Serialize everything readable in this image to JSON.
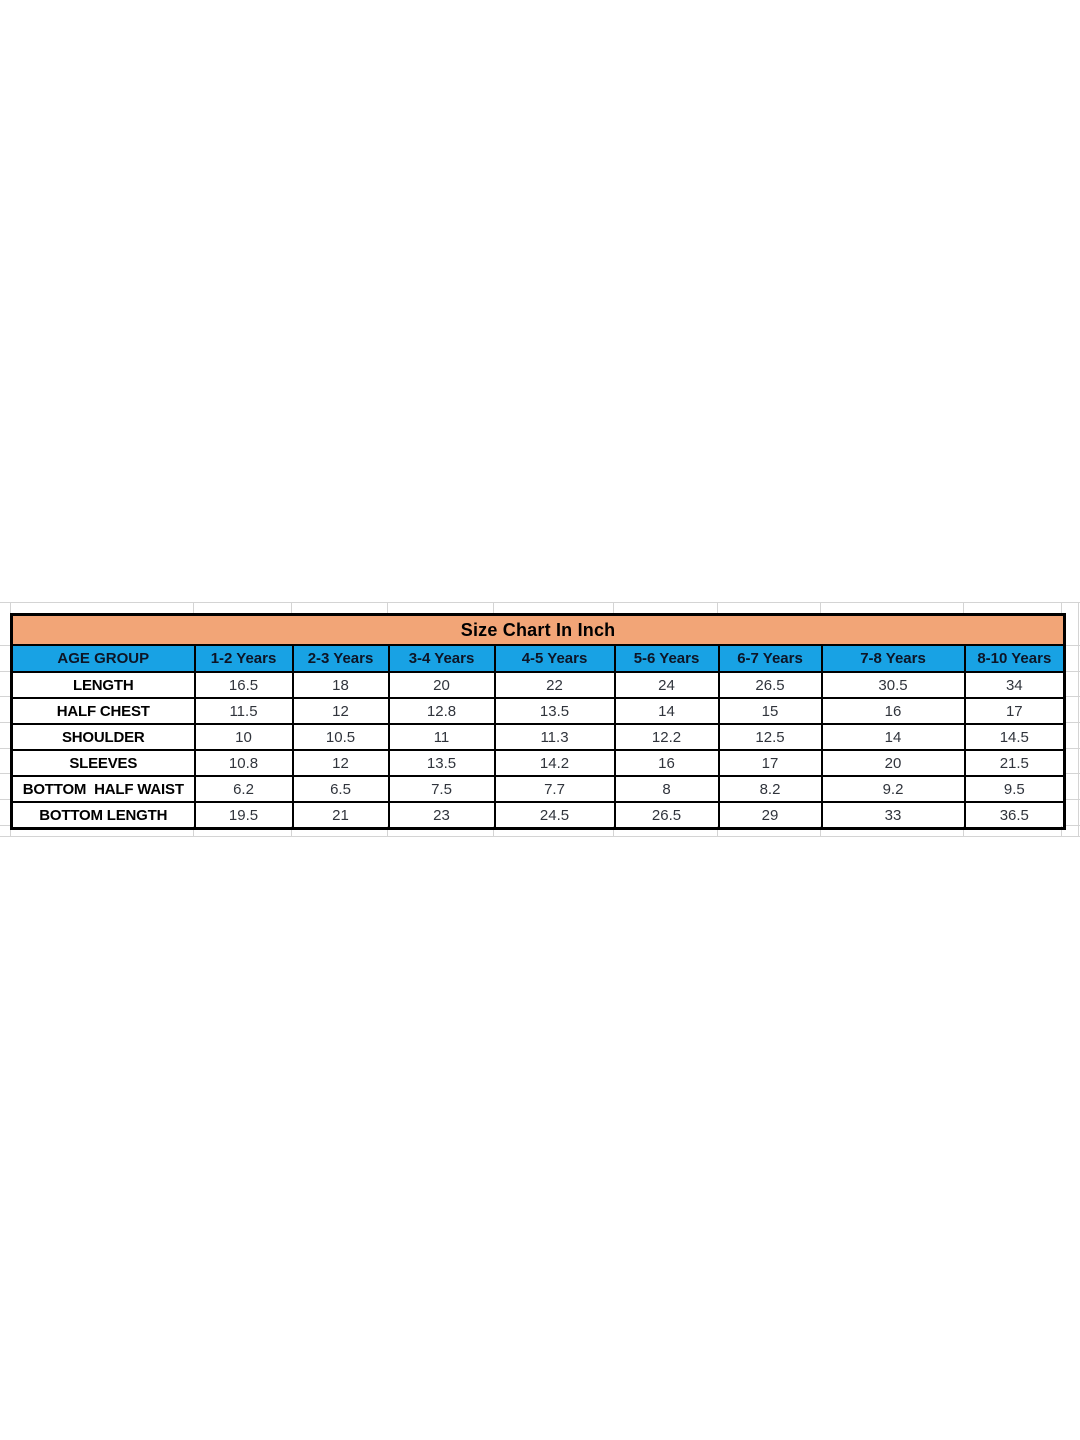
{
  "size_chart": {
    "title": "Size Chart In Inch",
    "columns": [
      "AGE GROUP",
      "1-2 Years",
      "2-3 Years",
      "3-4 Years",
      "4-5 Years",
      "5-6 Years",
      "6-7 Years",
      "7-8 Years",
      "8-10 Years"
    ],
    "rows": [
      {
        "label": "LENGTH",
        "values": [
          "16.5",
          "18",
          "20",
          "22",
          "24",
          "26.5",
          "30.5",
          "34"
        ]
      },
      {
        "label": "HALF CHEST",
        "values": [
          "11.5",
          "12",
          "12.8",
          "13.5",
          "14",
          "15",
          "16",
          "17"
        ]
      },
      {
        "label": "SHOULDER",
        "values": [
          "10",
          "10.5",
          "11",
          "11.3",
          "12.2",
          "12.5",
          "14",
          "14.5"
        ]
      },
      {
        "label": "SLEEVES",
        "values": [
          "10.8",
          "12",
          "13.5",
          "14.2",
          "16",
          "17",
          "20",
          "21.5"
        ]
      },
      {
        "label": "BOTTOM  HALF WAIST",
        "values": [
          "6.2",
          "6.5",
          "7.5",
          "7.7",
          "8",
          "8.2",
          "9.2",
          "9.5"
        ]
      },
      {
        "label": "BOTTOM LENGTH",
        "values": [
          "19.5",
          "21",
          "23",
          "24.5",
          "26.5",
          "29",
          "33",
          "36.5"
        ]
      }
    ],
    "colors": {
      "title_bg": "#f2a577",
      "header_bg": "#18a2e4",
      "border": "#000000",
      "gridline": "#d4d4d4"
    }
  }
}
